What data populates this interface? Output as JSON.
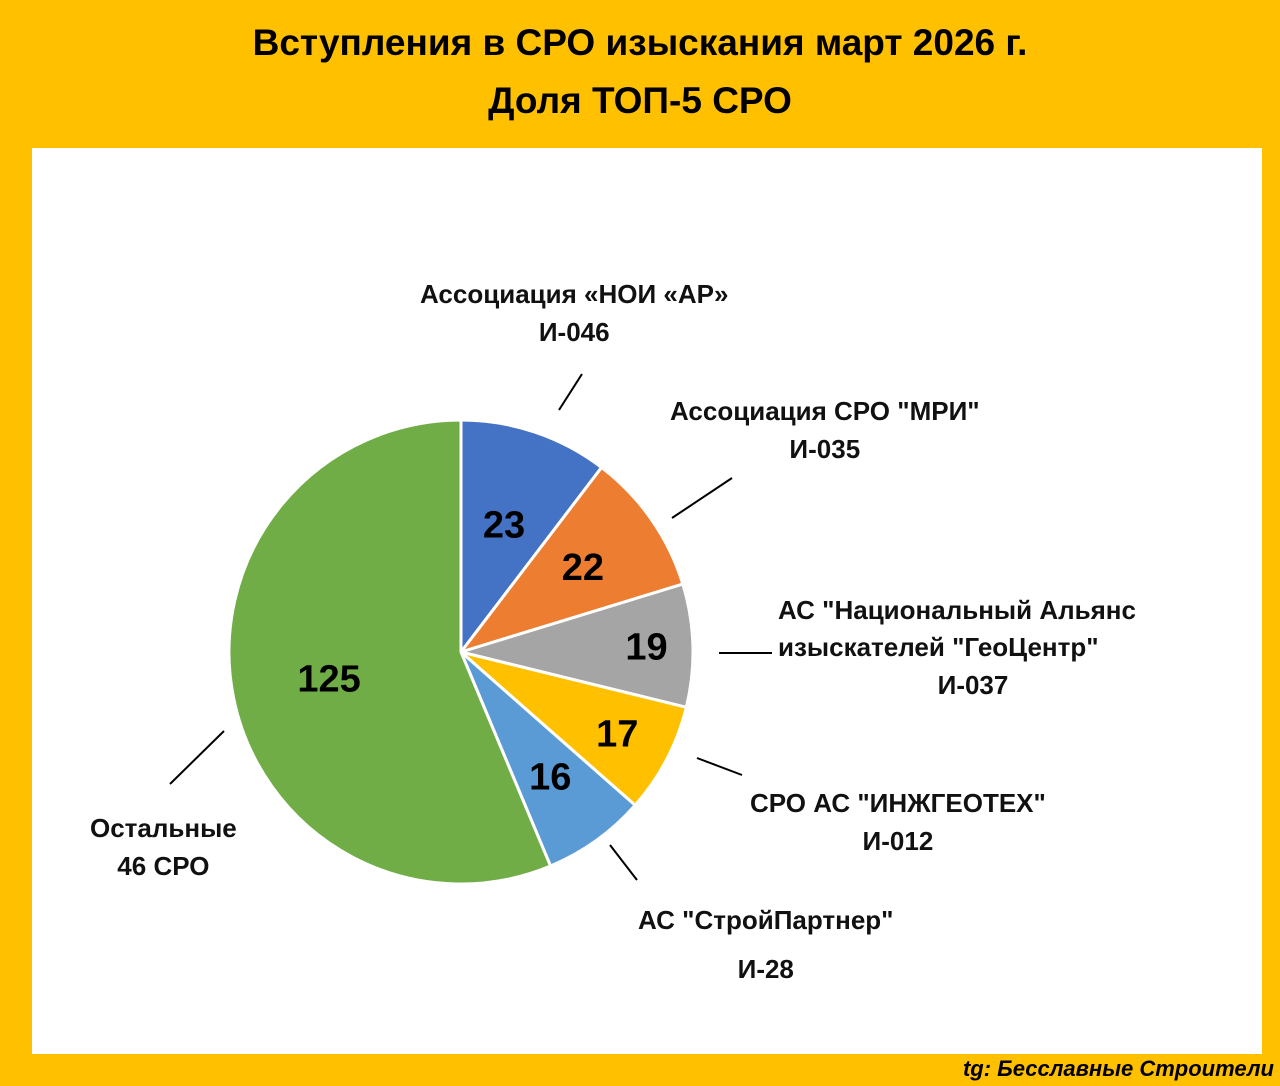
{
  "title_line1": "Вступления в СРО изыскания март 2026 г.",
  "title_line2": "Доля ТОП-5 СРО",
  "credit": "tg: Бесславные Строители",
  "chart_data": {
    "type": "pie",
    "slices": [
      {
        "value": 23,
        "label_lines": [
          "Ассоциация «НОИ «АР»",
          "И-046"
        ],
        "color": "#4472C4"
      },
      {
        "value": 22,
        "label_lines": [
          "Ассоциация СРО \"МРИ\"",
          "И-035"
        ],
        "color": "#ED7D31"
      },
      {
        "value": 19,
        "label_lines": [
          "АС \"Национальный Альянс",
          "изыскателей \"ГеоЦентр\"",
          "И-037"
        ],
        "color": "#A5A5A5"
      },
      {
        "value": 17,
        "label_lines": [
          "СРО АС \"ИНЖГЕОТЕХ\"",
          "И-012"
        ],
        "color": "#FFC000"
      },
      {
        "value": 16,
        "label_lines": [
          "АС \"СтройПартнер\"",
          "И-28"
        ],
        "color": "#5B9BD5"
      },
      {
        "value": 125,
        "label_lines": [
          "Остальные",
          "46 СРО"
        ],
        "color": "#70AD47"
      }
    ],
    "start": "12 o'clock",
    "direction": "clockwise"
  }
}
